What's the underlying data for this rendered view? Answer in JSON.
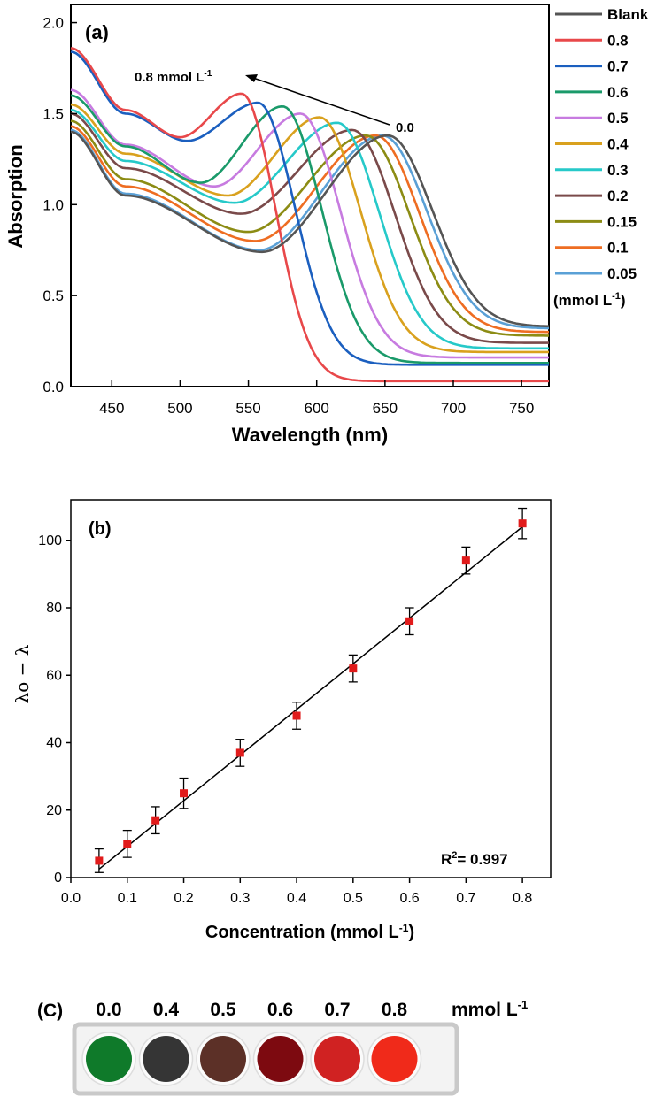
{
  "chart_data": [
    {
      "type": "line",
      "panel_label": "(a)",
      "xlabel": "Wavelength (nm)",
      "ylabel": "Absorption",
      "xlim": [
        420,
        770
      ],
      "ylim": [
        0.0,
        2.1
      ],
      "xticks": [
        450,
        500,
        550,
        600,
        650,
        700,
        750
      ],
      "yticks": [
        0.0,
        0.5,
        1.0,
        1.5,
        2.0
      ],
      "annotation_start": "0.8 mmol L",
      "annotation_start_sup": "-1",
      "annotation_end": "0.0",
      "legend_units": "(mmol L",
      "legend_units_sup": "-1",
      "legend_units_close": ")",
      "series": [
        {
          "name": "Blank",
          "color": "#555555",
          "start": 1.4,
          "a2": 1.05,
          "min_x": 560,
          "min_y": 0.74,
          "peak_x": 652,
          "peak_y": 1.38,
          "width": 44,
          "end": 0.33
        },
        {
          "name": "0.8",
          "color": "#e8484a",
          "start": 1.86,
          "a2": 1.52,
          "min_x": 500,
          "min_y": 1.37,
          "peak_x": 545,
          "peak_y": 1.61,
          "width": 33,
          "end": 0.03
        },
        {
          "name": "0.7",
          "color": "#1b5fbf",
          "start": 1.84,
          "a2": 1.5,
          "min_x": 505,
          "min_y": 1.35,
          "peak_x": 557,
          "peak_y": 1.56,
          "width": 36,
          "end": 0.12
        },
        {
          "name": "0.6",
          "color": "#1a9a6a",
          "start": 1.6,
          "a2": 1.32,
          "min_x": 515,
          "min_y": 1.12,
          "peak_x": 575,
          "peak_y": 1.54,
          "width": 38,
          "end": 0.13
        },
        {
          "name": "0.5",
          "color": "#c77be0",
          "start": 1.63,
          "a2": 1.33,
          "min_x": 525,
          "min_y": 1.1,
          "peak_x": 588,
          "peak_y": 1.5,
          "width": 39,
          "end": 0.16
        },
        {
          "name": "0.4",
          "color": "#d9a11e",
          "start": 1.55,
          "a2": 1.28,
          "min_x": 535,
          "min_y": 1.05,
          "peak_x": 602,
          "peak_y": 1.48,
          "width": 40,
          "end": 0.19
        },
        {
          "name": "0.3",
          "color": "#26c9c9",
          "start": 1.52,
          "a2": 1.24,
          "min_x": 540,
          "min_y": 1.01,
          "peak_x": 615,
          "peak_y": 1.45,
          "width": 41,
          "end": 0.21
        },
        {
          "name": "0.2",
          "color": "#7a4a4a",
          "start": 1.5,
          "a2": 1.2,
          "min_x": 545,
          "min_y": 0.95,
          "peak_x": 626,
          "peak_y": 1.41,
          "width": 42,
          "end": 0.24
        },
        {
          "name": "0.15",
          "color": "#8c8c14",
          "start": 1.46,
          "a2": 1.14,
          "min_x": 550,
          "min_y": 0.85,
          "peak_x": 636,
          "peak_y": 1.38,
          "width": 43,
          "end": 0.28
        },
        {
          "name": "0.1",
          "color": "#ee6d22",
          "start": 1.43,
          "a2": 1.1,
          "min_x": 555,
          "min_y": 0.8,
          "peak_x": 643,
          "peak_y": 1.38,
          "width": 43,
          "end": 0.3
        },
        {
          "name": "0.05",
          "color": "#5aa0d6",
          "start": 1.41,
          "a2": 1.06,
          "min_x": 558,
          "min_y": 0.75,
          "peak_x": 648,
          "peak_y": 1.38,
          "width": 44,
          "end": 0.32
        }
      ]
    },
    {
      "type": "scatter",
      "panel_label": "(b)",
      "xlabel": "Concentration (mmol L",
      "xlabel_sup": "-1",
      "xlabel_close": ")",
      "ylabel": "λo − λ",
      "xlim": [
        0.0,
        0.85
      ],
      "ylim": [
        0,
        112
      ],
      "xticks": [
        0.0,
        0.1,
        0.2,
        0.3,
        0.4,
        0.5,
        0.6,
        0.7,
        0.8
      ],
      "yticks": [
        0,
        20,
        40,
        60,
        80,
        100
      ],
      "x": [
        0.05,
        0.1,
        0.15,
        0.2,
        0.3,
        0.4,
        0.5,
        0.6,
        0.7,
        0.8
      ],
      "y": [
        5,
        10,
        17,
        25,
        37,
        48,
        62,
        76,
        94,
        105
      ],
      "err": [
        3.5,
        4,
        4,
        4.5,
        4,
        4,
        4,
        4,
        4,
        4.5
      ],
      "fit": {
        "x0": 0.05,
        "y0": 2.5,
        "x1": 0.8,
        "y1": 104
      },
      "r2_label": "R",
      "r2_sup": "2",
      "r2_value": "= 0.997",
      "marker_color": "#e11b1b"
    }
  ],
  "wells": {
    "panel_label": "(C)",
    "unit": "mmol L",
    "unit_sup": "-1",
    "items": [
      {
        "label": "0.0",
        "color": "#0f7a2a"
      },
      {
        "label": "0.4",
        "color": "#353535"
      },
      {
        "label": "0.5",
        "color": "#5c3027"
      },
      {
        "label": "0.6",
        "color": "#7d0a10"
      },
      {
        "label": "0.7",
        "color": "#d02222"
      },
      {
        "label": "0.8",
        "color": "#f02a1a"
      }
    ]
  }
}
